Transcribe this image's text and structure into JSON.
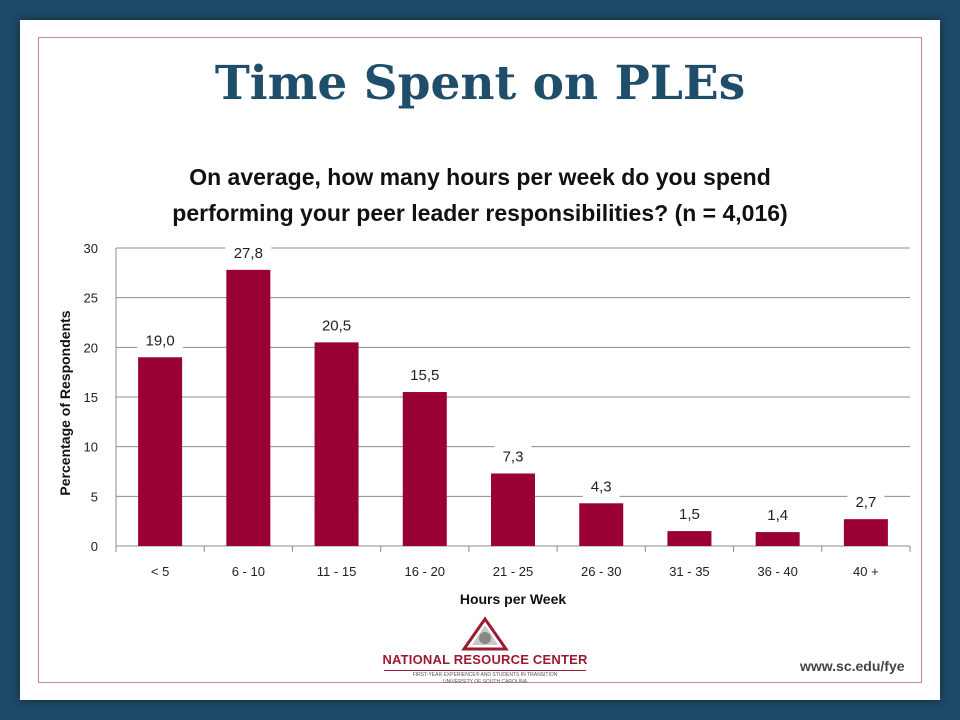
{
  "slide": {
    "title": "Time Spent on PLEs",
    "url": "www.sc.edu/fye"
  },
  "logo": {
    "name": "NATIONAL RESOURCE CENTER",
    "line1": "FIRST-YEAR EXPERIENCE® AND STUDENTS IN TRANSITION",
    "line2": "UNIVERSITY OF SOUTH CAROLINA"
  },
  "colors": {
    "bar": "#990033",
    "background": "#1d4a66",
    "title": "#1f4e6b"
  },
  "chart_data": {
    "type": "bar",
    "title_line1": "On average, how many hours per week do you spend",
    "title_line2": "performing your peer leader responsibilities? (n = 4,016)",
    "xlabel": "Hours per Week",
    "ylabel": "Percentage of Respondents",
    "categories": [
      "< 5",
      "6 - 10",
      "11 - 15",
      "16 - 20",
      "21 - 25",
      "26 - 30",
      "31 - 35",
      "36 - 40",
      "40 +"
    ],
    "values": [
      19.0,
      27.8,
      20.5,
      15.5,
      7.3,
      4.3,
      1.5,
      1.4,
      2.7
    ],
    "value_labels": [
      "19,0",
      "27,8",
      "20,5",
      "15,5",
      "7,3",
      "4,3",
      "1,5",
      "1,4",
      "2,7"
    ],
    "yticks": [
      "0",
      "5",
      "10",
      "15",
      "20",
      "25",
      "30"
    ],
    "ylim": [
      0,
      30
    ],
    "grid": true,
    "legend": "none"
  }
}
